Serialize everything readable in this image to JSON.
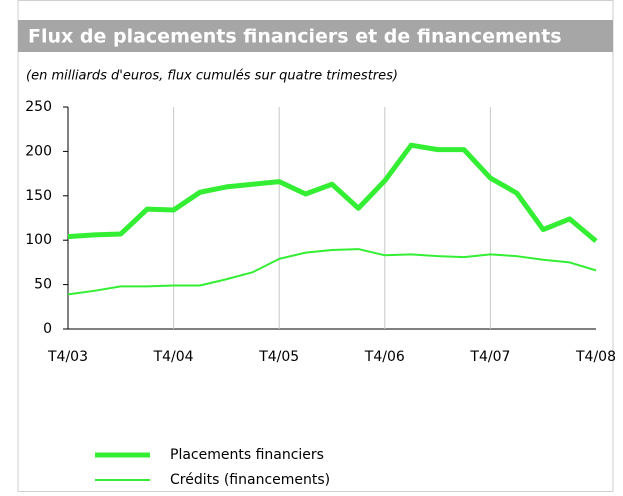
{
  "chart_data": {
    "type": "line",
    "title": "Flux de placements financiers et de financements",
    "subtitle": "(en milliards d'euros, flux cumulés sur quatre trimestres)",
    "categories": [
      "T4/03",
      null,
      null,
      null,
      "T4/04",
      null,
      null,
      null,
      "T4/05",
      null,
      null,
      null,
      "T4/06",
      null,
      null,
      null,
      "T4/07",
      null,
      null,
      null,
      "T4/08"
    ],
    "series": [
      {
        "name": "Placements financiers",
        "color": "#33ee33",
        "width": 5,
        "values": [
          104,
          106,
          107,
          135,
          134,
          154,
          160,
          163,
          166,
          152,
          163,
          136,
          167,
          207,
          202,
          202,
          170,
          153,
          112,
          124,
          99
        ]
      },
      {
        "name": "Crédits (financements)",
        "color": "#33ee33",
        "width": 2,
        "values": [
          39,
          43,
          48,
          48,
          49,
          49,
          56,
          64,
          79,
          86,
          89,
          90,
          83,
          84,
          82,
          81,
          84,
          82,
          78,
          75,
          66
        ]
      }
    ],
    "ylim": [
      0,
      250
    ],
    "yticks": [
      0,
      50,
      100,
      150,
      200,
      250
    ],
    "grid": true
  }
}
